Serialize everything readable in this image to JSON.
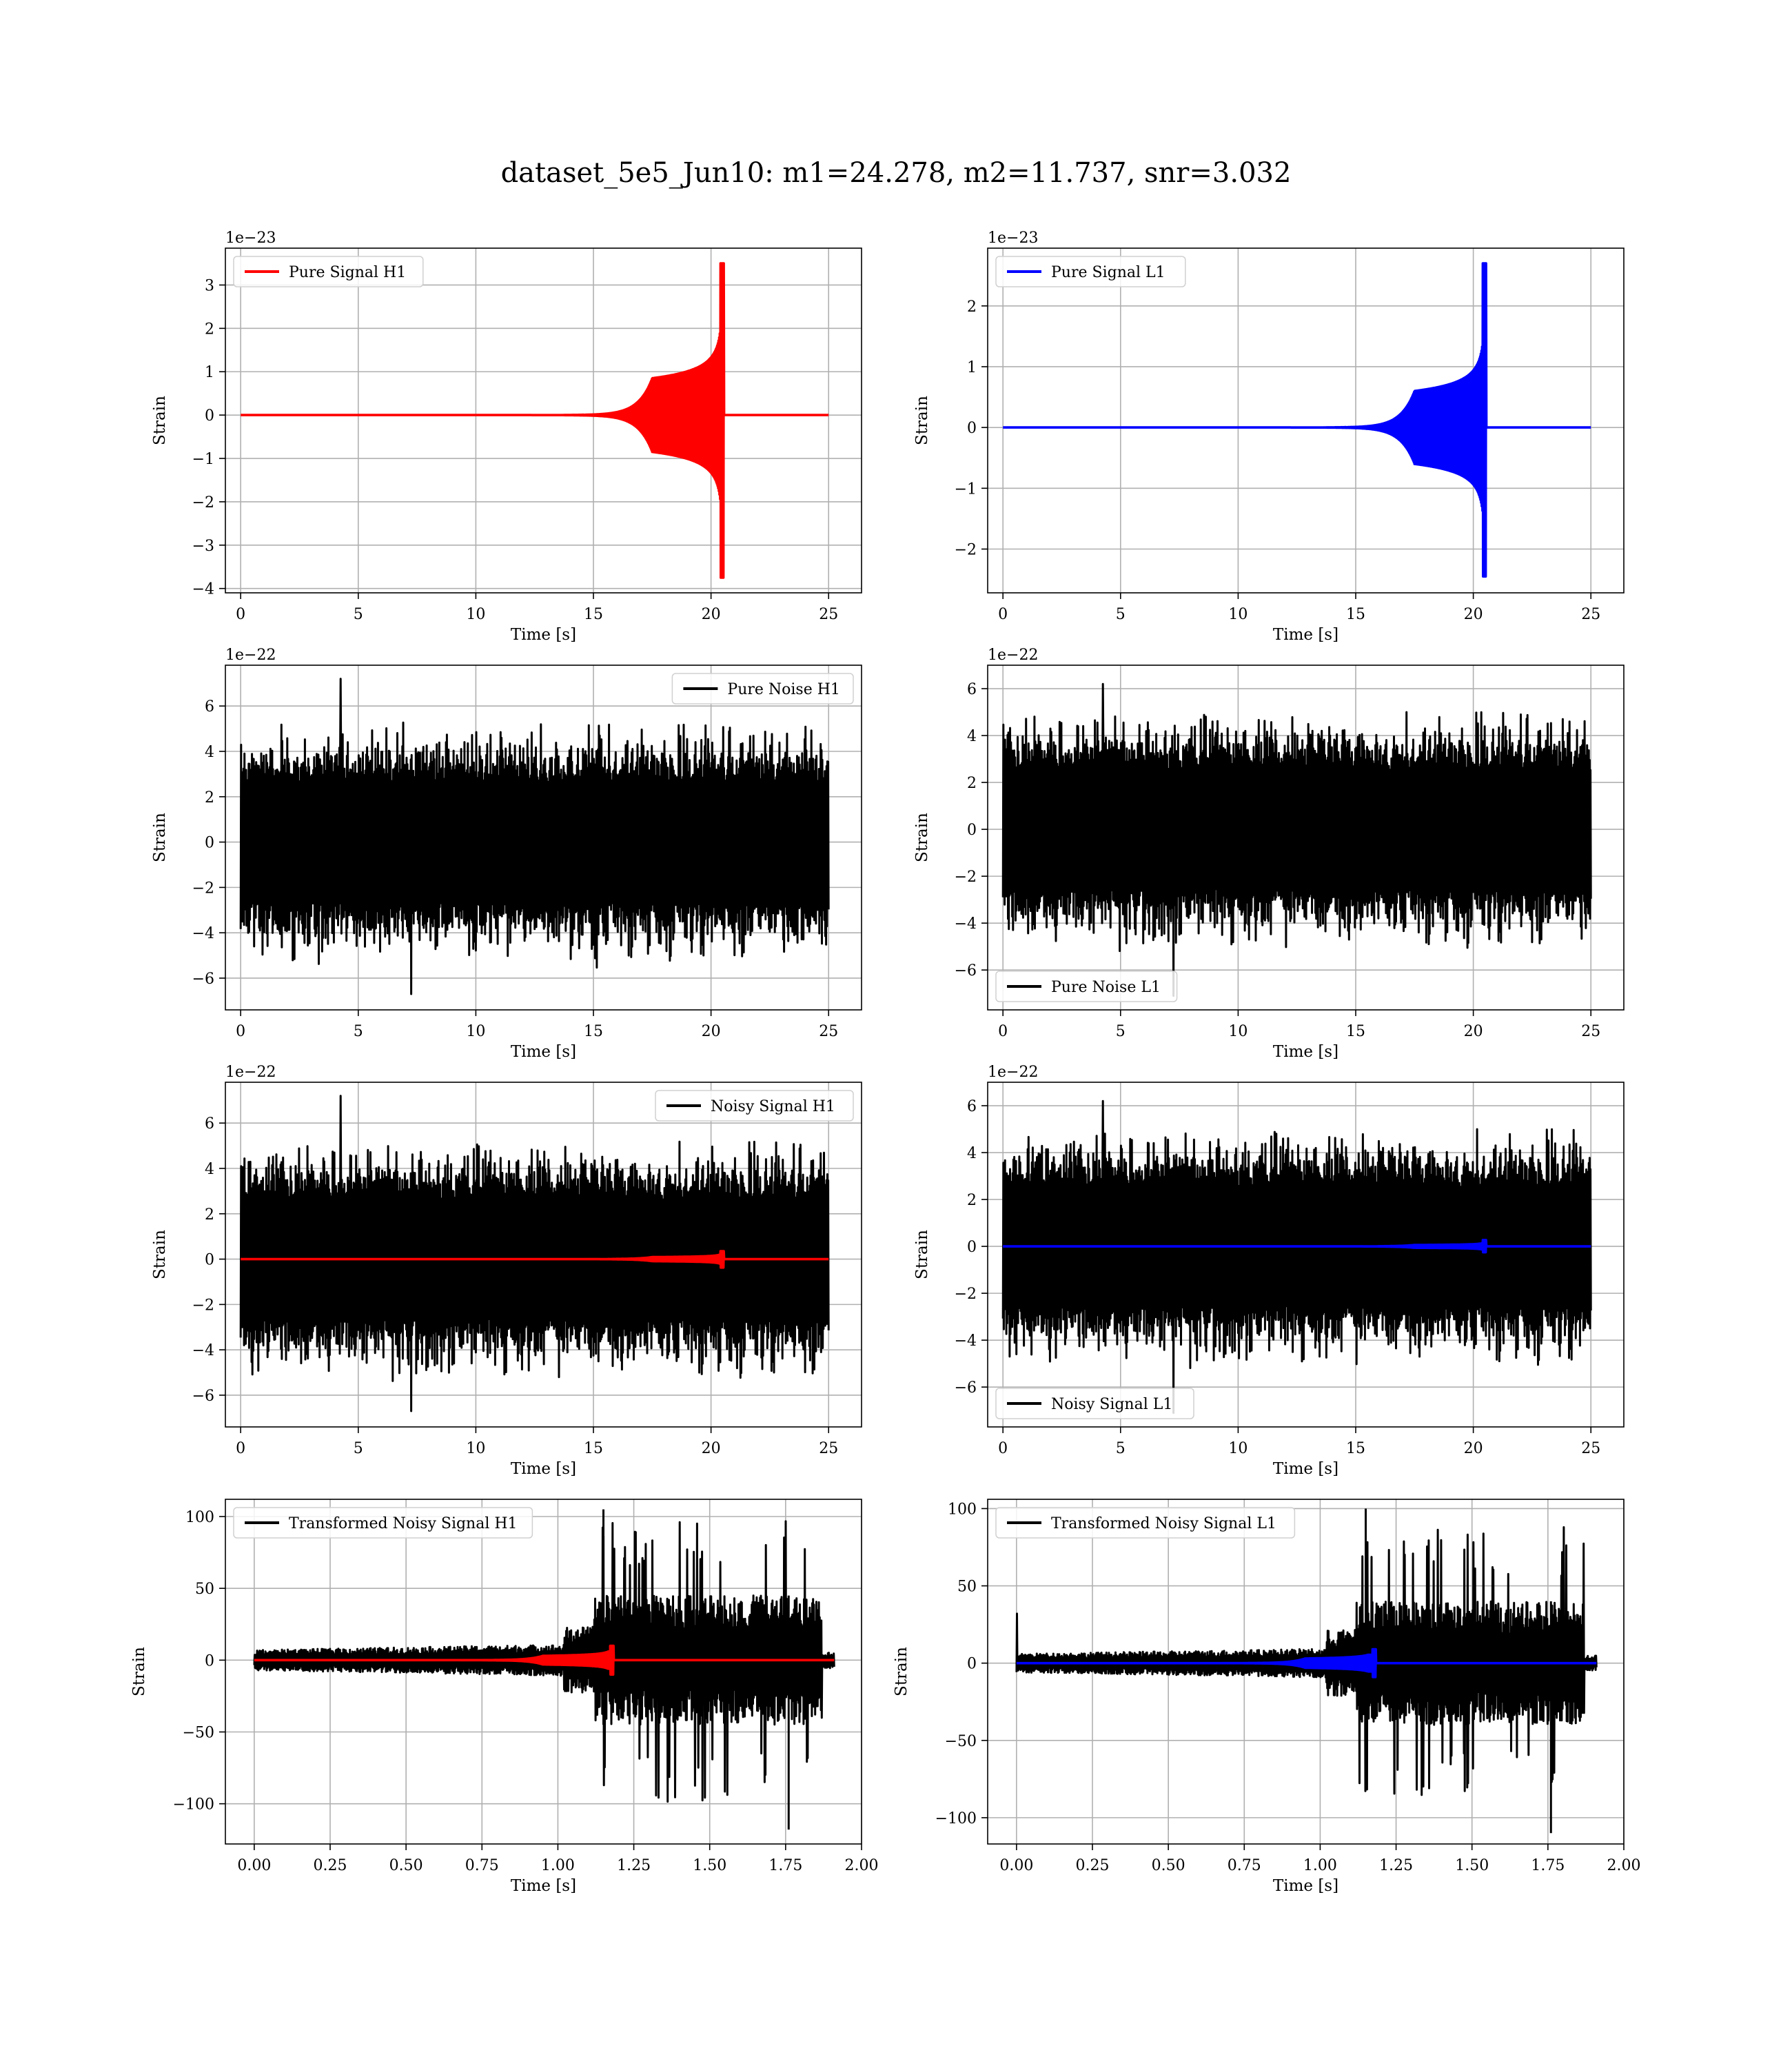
{
  "figure": {
    "title": "dataset_5e5_Jun10: m1=24.278, m2=11.737, snr=3.032"
  },
  "chart_data": [
    {
      "id": "h1-pure-signal",
      "type": "line",
      "xlabel": "Time [s]",
      "ylabel": "Strain",
      "offset_label": "1e−23",
      "xlim": [
        -0.65,
        26.4
      ],
      "ylim": [
        -4.1,
        3.85
      ],
      "xticks": [
        0,
        5,
        10,
        15,
        20,
        25
      ],
      "yticks": [
        -4,
        -3,
        -2,
        -1,
        0,
        1,
        2,
        3
      ],
      "legend": {
        "position": "upper-left"
      },
      "series": [
        {
          "name": "Pure Signal H1",
          "color": "#ff0000",
          "kind": "chirp",
          "x_range": [
            0,
            25
          ],
          "merger_t": 20.5,
          "amp_early": 0.1,
          "amp_plateau": 0.85,
          "peak_max": 3.5,
          "peak_min": -3.75
        }
      ]
    },
    {
      "id": "l1-pure-signal",
      "type": "line",
      "xlabel": "Time [s]",
      "ylabel": "Strain",
      "offset_label": "1e−23",
      "xlim": [
        -0.65,
        26.4
      ],
      "ylim": [
        -2.72,
        2.95
      ],
      "xticks": [
        0,
        5,
        10,
        15,
        20,
        25
      ],
      "yticks": [
        -2,
        -1,
        0,
        1,
        2
      ],
      "legend": {
        "position": "upper-left"
      },
      "series": [
        {
          "name": "Pure Signal L1",
          "color": "#0000ff",
          "kind": "chirp",
          "x_range": [
            0,
            25
          ],
          "merger_t": 20.5,
          "amp_early": 0.07,
          "amp_plateau": 0.6,
          "peak_max": 2.7,
          "peak_min": -2.45
        }
      ]
    },
    {
      "id": "h1-pure-noise",
      "type": "line",
      "xlabel": "Time [s]",
      "ylabel": "Strain",
      "offset_label": "1e−22",
      "xlim": [
        -0.65,
        26.4
      ],
      "ylim": [
        -7.4,
        7.8
      ],
      "xticks": [
        0,
        5,
        10,
        15,
        20,
        25
      ],
      "yticks": [
        -6,
        -4,
        -2,
        0,
        2,
        4,
        6
      ],
      "legend": {
        "position": "upper-right"
      },
      "series": [
        {
          "name": "Pure Noise H1",
          "color": "#000000",
          "kind": "noise",
          "x_range": [
            0,
            25
          ],
          "core": 2.9,
          "peak_max": 7.2,
          "peak_min": -6.7
        }
      ]
    },
    {
      "id": "l1-pure-noise",
      "type": "line",
      "xlabel": "Time [s]",
      "ylabel": "Strain",
      "offset_label": "1e−22",
      "xlim": [
        -0.65,
        26.4
      ],
      "ylim": [
        -7.7,
        7.0
      ],
      "xticks": [
        0,
        5,
        10,
        15,
        20,
        25
      ],
      "yticks": [
        -6,
        -4,
        -2,
        0,
        2,
        4,
        6
      ],
      "legend": {
        "position": "lower-left"
      },
      "series": [
        {
          "name": "Pure Noise L1",
          "color": "#000000",
          "kind": "noise",
          "x_range": [
            0,
            25
          ],
          "core": 2.8,
          "peak_max": 6.2,
          "peak_min": -7.1
        }
      ]
    },
    {
      "id": "h1-noisy-signal",
      "type": "line",
      "xlabel": "Time [s]",
      "ylabel": "Strain",
      "offset_label": "1e−22",
      "xlim": [
        -0.65,
        26.4
      ],
      "ylim": [
        -7.4,
        7.8
      ],
      "xticks": [
        0,
        5,
        10,
        15,
        20,
        25
      ],
      "yticks": [
        -6,
        -4,
        -2,
        0,
        2,
        4,
        6
      ],
      "legend": {
        "position": "upper-right"
      },
      "series": [
        {
          "name": "Noisy Signal H1",
          "color": "#000000",
          "kind": "noise",
          "x_range": [
            0,
            25
          ],
          "core": 2.9,
          "peak_max": 7.2,
          "peak_min": -6.7
        },
        {
          "color": "#ff0000",
          "kind": "chirp",
          "x_range": [
            0,
            25
          ],
          "merger_t": 20.5,
          "amp_early": 0.01,
          "amp_plateau": 0.09,
          "peak_max": 0.35,
          "peak_min": -0.37
        }
      ]
    },
    {
      "id": "l1-noisy-signal",
      "type": "line",
      "xlabel": "Time [s]",
      "ylabel": "Strain",
      "offset_label": "1e−22",
      "xlim": [
        -0.65,
        26.4
      ],
      "ylim": [
        -7.7,
        7.0
      ],
      "xticks": [
        0,
        5,
        10,
        15,
        20,
        25
      ],
      "yticks": [
        -6,
        -4,
        -2,
        0,
        2,
        4,
        6
      ],
      "legend": {
        "position": "lower-left"
      },
      "series": [
        {
          "name": "Noisy Signal L1",
          "color": "#000000",
          "kind": "noise",
          "x_range": [
            0,
            25
          ],
          "core": 2.8,
          "peak_max": 6.2,
          "peak_min": -7.1
        },
        {
          "color": "#0000ff",
          "kind": "chirp",
          "x_range": [
            0,
            25
          ],
          "merger_t": 20.5,
          "amp_early": 0.007,
          "amp_plateau": 0.06,
          "peak_max": 0.27,
          "peak_min": -0.25
        }
      ]
    },
    {
      "id": "h1-transformed",
      "type": "line",
      "xlabel": "Time [s]",
      "ylabel": "Strain",
      "offset_label": "",
      "xlim": [
        -0.095,
        2.0
      ],
      "ylim": [
        -128,
        112
      ],
      "xticks": [
        0,
        0.25,
        0.5,
        0.75,
        1.0,
        1.25,
        1.5,
        1.75,
        2.0
      ],
      "xtick_labels": [
        "0.00",
        "0.25",
        "0.50",
        "0.75",
        "1.00",
        "1.25",
        "1.50",
        "1.75",
        "2.00"
      ],
      "yticks": [
        -100,
        -50,
        0,
        50,
        100
      ],
      "legend": {
        "position": "upper-left"
      },
      "series": [
        {
          "name": "Transformed Noisy Signal H1",
          "color": "#000000",
          "kind": "whitened",
          "x_range": [
            0,
            1.91
          ],
          "jump_t": 1.12,
          "end_t": 1.87,
          "low_amp": 7,
          "high_amp": 45,
          "peak_max": 105,
          "peak_min": -118
        },
        {
          "color": "#ff0000",
          "kind": "chirp",
          "x_range": [
            0,
            1.91
          ],
          "merger_t": 1.18,
          "amp_early": 0.3,
          "amp_plateau": 3,
          "peak_max": 10,
          "peak_min": -10
        }
      ]
    },
    {
      "id": "l1-transformed",
      "type": "line",
      "xlabel": "Time [s]",
      "ylabel": "Strain",
      "offset_label": "",
      "xlim": [
        -0.095,
        2.0
      ],
      "ylim": [
        -117,
        106
      ],
      "xticks": [
        0,
        0.25,
        0.5,
        0.75,
        1.0,
        1.25,
        1.5,
        1.75,
        2.0
      ],
      "xtick_labels": [
        "0.00",
        "0.25",
        "0.50",
        "0.75",
        "1.00",
        "1.25",
        "1.50",
        "1.75",
        "2.00"
      ],
      "yticks": [
        -100,
        -50,
        0,
        50,
        100
      ],
      "legend": {
        "position": "upper-left"
      },
      "series": [
        {
          "name": "Transformed Noisy Signal L1",
          "color": "#000000",
          "kind": "whitened",
          "x_range": [
            0,
            1.91
          ],
          "jump_t": 1.12,
          "end_t": 1.87,
          "low_amp": 6,
          "high_amp": 40,
          "peak_max": 100,
          "peak_min": -110,
          "start_spike": 32
        },
        {
          "color": "#0000ff",
          "kind": "chirp",
          "x_range": [
            0,
            1.91
          ],
          "merger_t": 1.18,
          "amp_early": 0.3,
          "amp_plateau": 3,
          "peak_max": 9,
          "peak_min": -9
        }
      ]
    }
  ]
}
